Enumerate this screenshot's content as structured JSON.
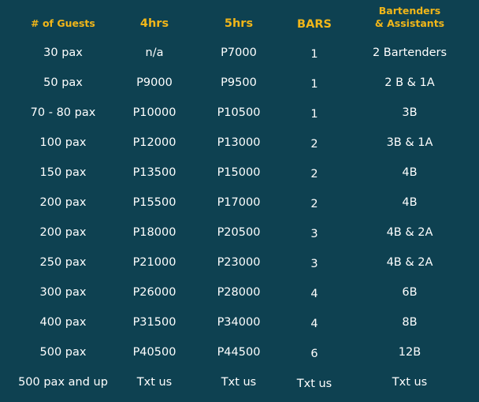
{
  "headers": [
    {
      "lines": [
        "# of Guests"
      ]
    },
    {
      "lines": [
        "4hrs"
      ]
    },
    {
      "lines": [
        "5hrs"
      ]
    },
    {
      "lines": [
        "BARS"
      ]
    },
    {
      "lines": [
        "Bartenders",
        "& Assistants"
      ]
    }
  ],
  "rows": [
    [
      "30 pax",
      "n/a",
      "P7000",
      "1",
      "2 Bartenders"
    ],
    [
      "50 pax",
      "P9000",
      "P9500",
      "1",
      "2 B & 1A"
    ],
    [
      "70 - 80 pax",
      "P10000",
      "P10500",
      "1",
      "3B"
    ],
    [
      "100 pax",
      "P12000",
      "P13000",
      "2",
      "3B & 1A"
    ],
    [
      "150 pax",
      "P13500",
      "P15000",
      "2",
      "4B"
    ],
    [
      "200 pax",
      "P15500",
      "P17000",
      "2",
      "4B"
    ],
    [
      "200 pax",
      "P18000",
      "P20500",
      "3",
      "4B & 2A"
    ],
    [
      "250 pax",
      "P21000",
      "P23000",
      "3",
      "4B & 2A"
    ],
    [
      "300 pax",
      "P26000",
      "P28000",
      "4",
      "6B"
    ],
    [
      "400 pax",
      "P31500",
      "P34000",
      "4",
      "8B"
    ],
    [
      "500 pax",
      "P40500",
      "P44500",
      "6",
      "12B"
    ],
    [
      "500 pax and up",
      "Txt us",
      "Txt us",
      "Txt us",
      "Txt us"
    ]
  ],
  "colors": {
    "background": "#0e4151",
    "header": "#f1b619",
    "text": "#ffffff"
  }
}
